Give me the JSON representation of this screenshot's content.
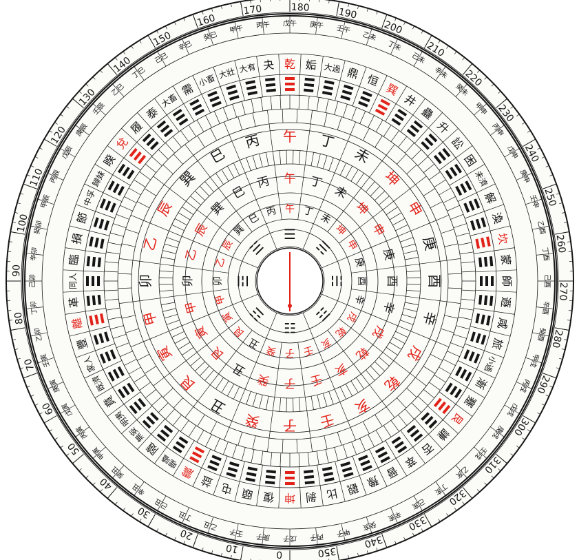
{
  "degree_scale": {
    "labels": [
      0,
      10,
      20,
      30,
      40,
      50,
      60,
      70,
      80,
      90,
      100,
      110,
      120,
      130,
      140,
      150,
      160,
      170,
      180,
      190,
      200,
      210,
      220,
      230,
      240,
      250,
      260,
      270,
      280,
      290,
      300,
      310,
      320,
      330,
      340,
      350
    ]
  },
  "sixty_dragons": {
    "labels": [
      "甲子",
      "丙子",
      "戊子",
      "庚子",
      "壬子",
      "乙丑",
      "丁丑",
      "己丑",
      "辛丑",
      "癸丑",
      "甲寅",
      "丙寅",
      "戊寅",
      "庚寅",
      "壬寅",
      "乙卯",
      "丁卯",
      "己卯",
      "辛卯",
      "癸卯",
      "甲辰",
      "丙辰",
      "戊辰",
      "庚辰",
      "壬辰",
      "乙巳",
      "丁巳",
      "己巳",
      "辛巳",
      "癸巳",
      "甲午",
      "丙午",
      "戊午",
      "庚午",
      "壬午",
      "乙未",
      "丁未",
      "己未",
      "辛未",
      "癸未",
      "甲申",
      "丙申",
      "戊申",
      "庚申",
      "壬申",
      "乙酉",
      "丁酉",
      "己酉",
      "辛酉",
      "癸酉",
      "甲戌",
      "丙戌",
      "戊戌",
      "庚戌",
      "壬戌",
      "乙亥",
      "丁亥",
      "己亥",
      "辛亥",
      "癸亥"
    ]
  },
  "hexagrams_64": {
    "labels": [
      "坤",
      "復",
      "頤",
      "屯",
      "益",
      "震",
      "噬嗑",
      "隨",
      "無妄",
      "明夷",
      "賁",
      "既濟",
      "家人",
      "豐",
      "離",
      "革",
      "同人",
      "臨",
      "損",
      "節",
      "中孚",
      "歸妹",
      "睽",
      "兌",
      "履",
      "泰",
      "大畜",
      "需",
      "小畜",
      "大壯",
      "大有",
      "夬",
      "乾",
      "姤",
      "大過",
      "鼎",
      "恒",
      "巽",
      "井",
      "蠱",
      "升",
      "訟",
      "困",
      "未濟",
      "解",
      "渙",
      "坎",
      "蒙",
      "師",
      "遯",
      "咸",
      "旅",
      "小過",
      "漸",
      "蹇",
      "艮",
      "謙",
      "否",
      "萃",
      "晉",
      "豫",
      "觀",
      "比",
      "剝"
    ],
    "red_indices": [
      0,
      5,
      14,
      23,
      32,
      37,
      46,
      55
    ]
  },
  "mountains_24": {
    "labels": [
      "子",
      "癸",
      "丑",
      "艮",
      "寅",
      "甲",
      "卯",
      "乙",
      "辰",
      "巽",
      "巳",
      "丙",
      "午",
      "丁",
      "未",
      "坤",
      "申",
      "庚",
      "酉",
      "辛",
      "戌",
      "乾",
      "亥",
      "壬"
    ],
    "red_indices": [
      0,
      1,
      3,
      4,
      5,
      7,
      8,
      12,
      15,
      16,
      20,
      21,
      22,
      23
    ]
  },
  "trigram_symbols": {
    "labels": [
      "☷",
      "☳",
      "☲",
      "☱",
      "☰",
      "☴",
      "☵",
      "☶"
    ]
  },
  "colors": {
    "red": "#e2231a",
    "ink": "#161616"
  }
}
